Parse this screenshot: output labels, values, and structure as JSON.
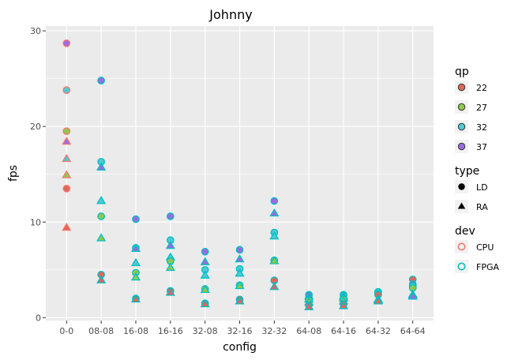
{
  "chart_data": {
    "type": "scatter",
    "title": "Johnny",
    "xlabel": "config",
    "ylabel": "fps",
    "categories": [
      "0-0",
      "08-08",
      "16-08",
      "16-16",
      "32-08",
      "32-16",
      "32-32",
      "64-08",
      "64-16",
      "64-32",
      "64-64"
    ],
    "ylim": [
      -0.3,
      30.5
    ],
    "yticks": [
      0,
      10,
      20,
      30
    ],
    "grid": true,
    "legend_position": "right",
    "legends": [
      {
        "title": "qp",
        "items": [
          {
            "label": "22",
            "color": "#e0665c"
          },
          {
            "label": "27",
            "color": "#8fc94f"
          },
          {
            "label": "32",
            "color": "#4fc9d6"
          },
          {
            "label": "37",
            "color": "#9a6ce0"
          }
        ]
      },
      {
        "title": "type",
        "items": [
          {
            "label": "LD",
            "shape": "circle"
          },
          {
            "label": "RA",
            "shape": "triangle"
          }
        ]
      },
      {
        "title": "dev",
        "items": [
          {
            "label": "CPU",
            "color": "#f8766d"
          },
          {
            "label": "FPGA",
            "color": "#00bfc4"
          }
        ]
      }
    ],
    "points": [
      {
        "x": "0-0",
        "y": 28.7,
        "type": "LD",
        "qp": "37",
        "dev": "CPU"
      },
      {
        "x": "0-0",
        "y": 23.8,
        "type": "LD",
        "qp": "32",
        "dev": "CPU"
      },
      {
        "x": "0-0",
        "y": 19.5,
        "type": "LD",
        "qp": "27",
        "dev": "CPU"
      },
      {
        "x": "0-0",
        "y": 13.5,
        "type": "LD",
        "qp": "22",
        "dev": "CPU"
      },
      {
        "x": "0-0",
        "y": 18.4,
        "type": "RA",
        "qp": "37",
        "dev": "CPU"
      },
      {
        "x": "0-0",
        "y": 16.6,
        "type": "RA",
        "qp": "32",
        "dev": "CPU"
      },
      {
        "x": "0-0",
        "y": 14.9,
        "type": "RA",
        "qp": "27",
        "dev": "CPU"
      },
      {
        "x": "0-0",
        "y": 9.4,
        "type": "RA",
        "qp": "22",
        "dev": "CPU"
      },
      {
        "x": "08-08",
        "y": 24.8,
        "type": "LD",
        "qp": "37",
        "dev": "FPGA"
      },
      {
        "x": "08-08",
        "y": 16.3,
        "type": "LD",
        "qp": "32",
        "dev": "FPGA"
      },
      {
        "x": "08-08",
        "y": 15.7,
        "type": "RA",
        "qp": "37",
        "dev": "FPGA"
      },
      {
        "x": "08-08",
        "y": 12.2,
        "type": "RA",
        "qp": "32",
        "dev": "FPGA"
      },
      {
        "x": "08-08",
        "y": 10.6,
        "type": "LD",
        "qp": "27",
        "dev": "FPGA"
      },
      {
        "x": "08-08",
        "y": 8.3,
        "type": "RA",
        "qp": "27",
        "dev": "FPGA"
      },
      {
        "x": "08-08",
        "y": 4.5,
        "type": "LD",
        "qp": "22",
        "dev": "FPGA"
      },
      {
        "x": "08-08",
        "y": 3.9,
        "type": "RA",
        "qp": "22",
        "dev": "FPGA"
      },
      {
        "x": "16-08",
        "y": 10.3,
        "type": "LD",
        "qp": "37",
        "dev": "FPGA"
      },
      {
        "x": "16-08",
        "y": 7.3,
        "type": "LD",
        "qp": "32",
        "dev": "FPGA"
      },
      {
        "x": "16-08",
        "y": 7.2,
        "type": "RA",
        "qp": "37",
        "dev": "FPGA"
      },
      {
        "x": "16-08",
        "y": 5.7,
        "type": "RA",
        "qp": "32",
        "dev": "FPGA"
      },
      {
        "x": "16-08",
        "y": 4.7,
        "type": "LD",
        "qp": "27",
        "dev": "FPGA"
      },
      {
        "x": "16-08",
        "y": 4.2,
        "type": "RA",
        "qp": "27",
        "dev": "FPGA"
      },
      {
        "x": "16-08",
        "y": 2.0,
        "type": "LD",
        "qp": "22",
        "dev": "FPGA"
      },
      {
        "x": "16-08",
        "y": 1.9,
        "type": "RA",
        "qp": "22",
        "dev": "FPGA"
      },
      {
        "x": "16-16",
        "y": 10.6,
        "type": "LD",
        "qp": "37",
        "dev": "FPGA"
      },
      {
        "x": "16-16",
        "y": 8.1,
        "type": "LD",
        "qp": "32",
        "dev": "FPGA"
      },
      {
        "x": "16-16",
        "y": 7.5,
        "type": "RA",
        "qp": "37",
        "dev": "FPGA"
      },
      {
        "x": "16-16",
        "y": 6.3,
        "type": "RA",
        "qp": "32",
        "dev": "FPGA"
      },
      {
        "x": "16-16",
        "y": 5.9,
        "type": "LD",
        "qp": "27",
        "dev": "FPGA"
      },
      {
        "x": "16-16",
        "y": 5.2,
        "type": "RA",
        "qp": "27",
        "dev": "FPGA"
      },
      {
        "x": "16-16",
        "y": 2.8,
        "type": "LD",
        "qp": "22",
        "dev": "FPGA"
      },
      {
        "x": "16-16",
        "y": 2.6,
        "type": "RA",
        "qp": "22",
        "dev": "FPGA"
      },
      {
        "x": "32-08",
        "y": 6.9,
        "type": "LD",
        "qp": "37",
        "dev": "FPGA"
      },
      {
        "x": "32-08",
        "y": 5.8,
        "type": "RA",
        "qp": "37",
        "dev": "FPGA"
      },
      {
        "x": "32-08",
        "y": 5.0,
        "type": "LD",
        "qp": "32",
        "dev": "FPGA"
      },
      {
        "x": "32-08",
        "y": 4.4,
        "type": "RA",
        "qp": "32",
        "dev": "FPGA"
      },
      {
        "x": "32-08",
        "y": 3.0,
        "type": "LD",
        "qp": "27",
        "dev": "FPGA"
      },
      {
        "x": "32-08",
        "y": 2.9,
        "type": "RA",
        "qp": "27",
        "dev": "FPGA"
      },
      {
        "x": "32-08",
        "y": 1.5,
        "type": "LD",
        "qp": "22",
        "dev": "FPGA"
      },
      {
        "x": "32-08",
        "y": 1.4,
        "type": "RA",
        "qp": "22",
        "dev": "FPGA"
      },
      {
        "x": "32-16",
        "y": 7.1,
        "type": "LD",
        "qp": "37",
        "dev": "FPGA"
      },
      {
        "x": "32-16",
        "y": 6.1,
        "type": "RA",
        "qp": "37",
        "dev": "FPGA"
      },
      {
        "x": "32-16",
        "y": 5.1,
        "type": "LD",
        "qp": "32",
        "dev": "FPGA"
      },
      {
        "x": "32-16",
        "y": 4.6,
        "type": "RA",
        "qp": "32",
        "dev": "FPGA"
      },
      {
        "x": "32-16",
        "y": 3.4,
        "type": "LD",
        "qp": "27",
        "dev": "FPGA"
      },
      {
        "x": "32-16",
        "y": 3.3,
        "type": "RA",
        "qp": "27",
        "dev": "FPGA"
      },
      {
        "x": "32-16",
        "y": 1.9,
        "type": "LD",
        "qp": "22",
        "dev": "FPGA"
      },
      {
        "x": "32-16",
        "y": 1.7,
        "type": "RA",
        "qp": "22",
        "dev": "FPGA"
      },
      {
        "x": "32-32",
        "y": 12.2,
        "type": "LD",
        "qp": "37",
        "dev": "FPGA"
      },
      {
        "x": "32-32",
        "y": 10.9,
        "type": "RA",
        "qp": "37",
        "dev": "FPGA"
      },
      {
        "x": "32-32",
        "y": 8.9,
        "type": "LD",
        "qp": "32",
        "dev": "FPGA"
      },
      {
        "x": "32-32",
        "y": 8.5,
        "type": "RA",
        "qp": "32",
        "dev": "FPGA"
      },
      {
        "x": "32-32",
        "y": 6.0,
        "type": "LD",
        "qp": "27",
        "dev": "FPGA"
      },
      {
        "x": "32-32",
        "y": 5.9,
        "type": "RA",
        "qp": "27",
        "dev": "FPGA"
      },
      {
        "x": "32-32",
        "y": 3.9,
        "type": "LD",
        "qp": "22",
        "dev": "FPGA"
      },
      {
        "x": "32-32",
        "y": 3.2,
        "type": "RA",
        "qp": "22",
        "dev": "FPGA"
      },
      {
        "x": "64-08",
        "y": 2.4,
        "type": "LD",
        "qp": "37",
        "dev": "FPGA"
      },
      {
        "x": "64-08",
        "y": 2.1,
        "type": "LD",
        "qp": "32",
        "dev": "FPGA"
      },
      {
        "x": "64-08",
        "y": 2.2,
        "type": "RA",
        "qp": "37",
        "dev": "FPGA"
      },
      {
        "x": "64-08",
        "y": 1.9,
        "type": "RA",
        "qp": "32",
        "dev": "FPGA"
      },
      {
        "x": "64-08",
        "y": 1.8,
        "type": "LD",
        "qp": "27",
        "dev": "FPGA"
      },
      {
        "x": "64-08",
        "y": 1.6,
        "type": "RA",
        "qp": "27",
        "dev": "FPGA"
      },
      {
        "x": "64-08",
        "y": 1.3,
        "type": "LD",
        "qp": "22",
        "dev": "FPGA"
      },
      {
        "x": "64-08",
        "y": 1.1,
        "type": "RA",
        "qp": "22",
        "dev": "FPGA"
      },
      {
        "x": "64-16",
        "y": 2.4,
        "type": "LD",
        "qp": "37",
        "dev": "FPGA"
      },
      {
        "x": "64-16",
        "y": 2.3,
        "type": "LD",
        "qp": "32",
        "dev": "FPGA"
      },
      {
        "x": "64-16",
        "y": 2.2,
        "type": "RA",
        "qp": "37",
        "dev": "FPGA"
      },
      {
        "x": "64-16",
        "y": 2.0,
        "type": "RA",
        "qp": "32",
        "dev": "FPGA"
      },
      {
        "x": "64-16",
        "y": 1.9,
        "type": "LD",
        "qp": "27",
        "dev": "FPGA"
      },
      {
        "x": "64-16",
        "y": 1.7,
        "type": "RA",
        "qp": "27",
        "dev": "FPGA"
      },
      {
        "x": "64-16",
        "y": 1.4,
        "type": "LD",
        "qp": "22",
        "dev": "FPGA"
      },
      {
        "x": "64-16",
        "y": 1.2,
        "type": "RA",
        "qp": "22",
        "dev": "FPGA"
      },
      {
        "x": "64-32",
        "y": 2.7,
        "type": "LD",
        "qp": "37",
        "dev": "FPGA"
      },
      {
        "x": "64-32",
        "y": 2.7,
        "type": "LD",
        "qp": "32",
        "dev": "FPGA"
      },
      {
        "x": "64-32",
        "y": 2.5,
        "type": "LD",
        "qp": "27",
        "dev": "FPGA"
      },
      {
        "x": "64-32",
        "y": 2.4,
        "type": "LD",
        "qp": "22",
        "dev": "FPGA"
      },
      {
        "x": "64-32",
        "y": 1.9,
        "type": "RA",
        "qp": "37",
        "dev": "FPGA"
      },
      {
        "x": "64-32",
        "y": 1.8,
        "type": "RA",
        "qp": "32",
        "dev": "FPGA"
      },
      {
        "x": "64-32",
        "y": 1.7,
        "type": "RA",
        "qp": "27",
        "dev": "FPGA"
      },
      {
        "x": "64-32",
        "y": 1.7,
        "type": "RA",
        "qp": "22",
        "dev": "FPGA"
      },
      {
        "x": "64-64",
        "y": 4.0,
        "type": "LD",
        "qp": "22",
        "dev": "FPGA"
      },
      {
        "x": "64-64",
        "y": 3.5,
        "type": "LD",
        "qp": "37",
        "dev": "FPGA"
      },
      {
        "x": "64-64",
        "y": 3.3,
        "type": "LD",
        "qp": "32",
        "dev": "FPGA"
      },
      {
        "x": "64-64",
        "y": 3.1,
        "type": "LD",
        "qp": "27",
        "dev": "FPGA"
      },
      {
        "x": "64-64",
        "y": 2.4,
        "type": "RA",
        "qp": "22",
        "dev": "FPGA"
      },
      {
        "x": "64-64",
        "y": 2.3,
        "type": "RA",
        "qp": "27",
        "dev": "FPGA"
      },
      {
        "x": "64-64",
        "y": 2.2,
        "type": "RA",
        "qp": "32",
        "dev": "FPGA"
      },
      {
        "x": "64-64",
        "y": 2.2,
        "type": "RA",
        "qp": "37",
        "dev": "FPGA"
      }
    ]
  }
}
